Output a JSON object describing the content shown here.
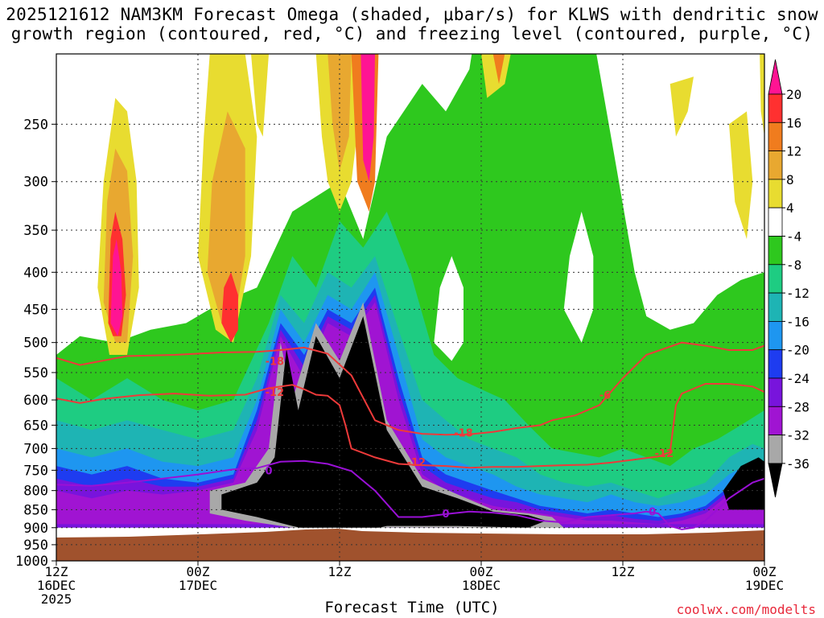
{
  "title_line1": "2025121612 NAM3KM Forecast Omega (shaded, μbar/s) for KLWS with dendritic snow",
  "title_line2": "growth region (contoured, red, °C) and freezing level (contoured, purple, °C)",
  "x_axis_title": "Forecast Time (UTC)",
  "credit": "coolwx.com/modelts",
  "chart_data": {
    "type": "heatmap",
    "title": "2025121612 NAM3KM Forecast Omega (shaded, μbar/s) for KLWS with dendritic snow growth region (contoured, red, °C) and freezing level (contoured, purple, °C)",
    "xlabel": "Forecast Time (UTC)",
    "ylabel": "",
    "x_start": "2025121612",
    "x_range_hours": [
      0,
      60
    ],
    "y_scale": "log-pressure",
    "y_range_mb": [
      1000,
      200
    ],
    "grid": true,
    "y_ticks": [
      250,
      300,
      350,
      400,
      450,
      500,
      550,
      600,
      650,
      700,
      750,
      800,
      850,
      900,
      950,
      1000
    ],
    "x_ticks": [
      {
        "hour": 0,
        "line1": "12Z",
        "line2": "16DEC",
        "line3": "2025"
      },
      {
        "hour": 12,
        "line1": "00Z",
        "line2": "17DEC",
        "line3": ""
      },
      {
        "hour": 24,
        "line1": "12Z",
        "line2": "",
        "line3": ""
      },
      {
        "hour": 36,
        "line1": "00Z",
        "line2": "18DEC",
        "line3": ""
      },
      {
        "hour": 48,
        "line1": "12Z",
        "line2": "",
        "line3": ""
      },
      {
        "hour": 60,
        "line1": "00Z",
        "line2": "19DEC",
        "line3": ""
      }
    ],
    "colorbar": {
      "units": "μbar/s",
      "levels": [
        20,
        16,
        12,
        8,
        4,
        -4,
        -8,
        -12,
        -16,
        -20,
        -24,
        -28,
        -32,
        -36
      ],
      "colors": [
        "#ff1493",
        "#ff3030",
        "#f07c1e",
        "#e8a830",
        "#e8dc30",
        "#ffffff",
        "#2ec81e",
        "#1ecc82",
        "#1eb4b4",
        "#1e96f0",
        "#1e3cf0",
        "#7814dc",
        "#a014d2",
        "#a8a8a8",
        "#000000"
      ]
    },
    "contour_labels": [
      {
        "series": "dendritic",
        "label": "-18",
        "hour": 18.5,
        "mb": 530
      },
      {
        "series": "dendritic",
        "label": "-12",
        "hour": 18.5,
        "mb": 585
      },
      {
        "series": "dendritic",
        "label": "-18",
        "hour": 34.5,
        "mb": 665
      },
      {
        "series": "dendritic",
        "label": "-12",
        "hour": 30.5,
        "mb": 730
      },
      {
        "series": "dendritic",
        "label": "-12",
        "hour": 51.5,
        "mb": 710
      },
      {
        "series": "dendritic",
        "label": "-6",
        "hour": 46.5,
        "mb": 590
      },
      {
        "series": "freezing",
        "label": "0",
        "hour": 18,
        "mb": 750
      },
      {
        "series": "freezing",
        "label": "0",
        "hour": 33,
        "mb": 860
      },
      {
        "series": "freezing",
        "label": "0",
        "hour": 50.5,
        "mb": 855
      }
    ],
    "series": [
      {
        "name": "dendritic -18",
        "x": [
          0,
          2,
          6,
          10,
          14,
          17,
          19,
          21,
          23,
          25,
          27,
          29,
          31,
          33,
          35,
          37,
          39,
          41,
          42,
          44,
          46,
          48,
          50,
          53,
          55,
          57,
          59,
          60
        ],
        "y": [
          525,
          537,
          522,
          520,
          516,
          515,
          512,
          508,
          518,
          555,
          640,
          660,
          668,
          670,
          669,
          664,
          656,
          650,
          640,
          630,
          610,
          560,
          520,
          500,
          505,
          512,
          512,
          505
        ]
      },
      {
        "name": "dendritic -12",
        "x": [
          0,
          2,
          4,
          7,
          10,
          13,
          16,
          18,
          20,
          21,
          22,
          23,
          24,
          24.5,
          25,
          27,
          29,
          31,
          33,
          35,
          37,
          39,
          41,
          43,
          45,
          47,
          49,
          51,
          52,
          52.5,
          53,
          55,
          57,
          59,
          60
        ],
        "y": [
          597,
          606,
          598,
          591,
          588,
          592,
          590,
          578,
          572,
          580,
          590,
          592,
          610,
          650,
          700,
          720,
          735,
          738,
          740,
          744,
          742,
          742,
          740,
          738,
          737,
          732,
          725,
          718,
          708,
          610,
          588,
          570,
          570,
          575,
          585
        ]
      },
      {
        "name": "freezing 0",
        "x": [
          0,
          3,
          6,
          9,
          12,
          15,
          17,
          19,
          21,
          23,
          25,
          27,
          29,
          31,
          33,
          35,
          37,
          39,
          41,
          43,
          45,
          47,
          49,
          50,
          51,
          52,
          53,
          54,
          55,
          57,
          59,
          60
        ],
        "y": [
          785,
          788,
          780,
          770,
          760,
          748,
          745,
          730,
          728,
          735,
          752,
          800,
          870,
          870,
          862,
          855,
          858,
          865,
          880,
          885,
          870,
          865,
          860,
          855,
          860,
          895,
          905,
          900,
          880,
          820,
          780,
          770
        ]
      }
    ]
  }
}
